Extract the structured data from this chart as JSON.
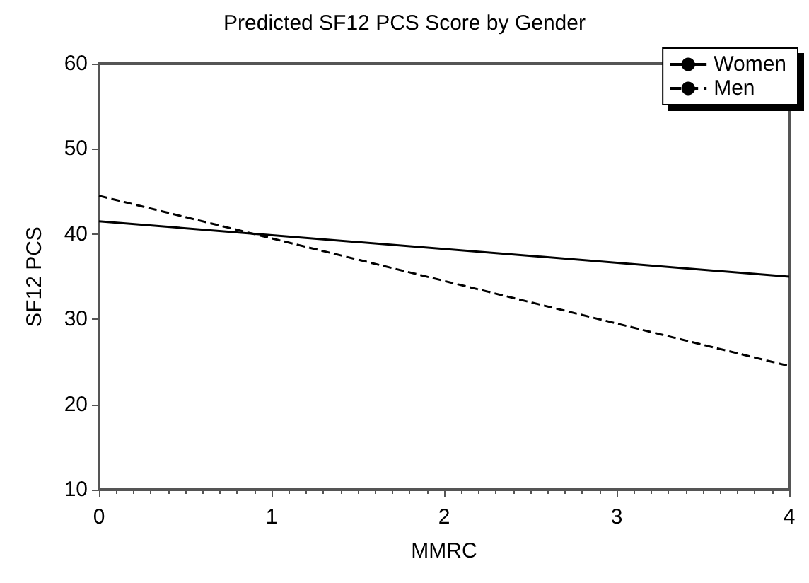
{
  "chart_data": {
    "type": "line",
    "title": "Predicted SF12 PCS Score by Gender",
    "xlabel": "MMRC",
    "ylabel": "SF12 PCS",
    "x": [
      0,
      4
    ],
    "series": [
      {
        "name": "Women",
        "color": "#000000",
        "values": [
          41.5,
          35
        ],
        "line_style": "solid"
      },
      {
        "name": "Men",
        "color": "#000000",
        "values": [
          44.5,
          24.5
        ],
        "line_style": "dashed"
      }
    ],
    "xlim": [
      0,
      4
    ],
    "xticks": [
      0,
      1,
      2,
      3,
      4
    ],
    "ylim": [
      10,
      60
    ],
    "yticks": [
      10,
      20,
      30,
      40,
      50,
      60
    ],
    "grid": false,
    "legend": "top right",
    "marker": "none"
  }
}
